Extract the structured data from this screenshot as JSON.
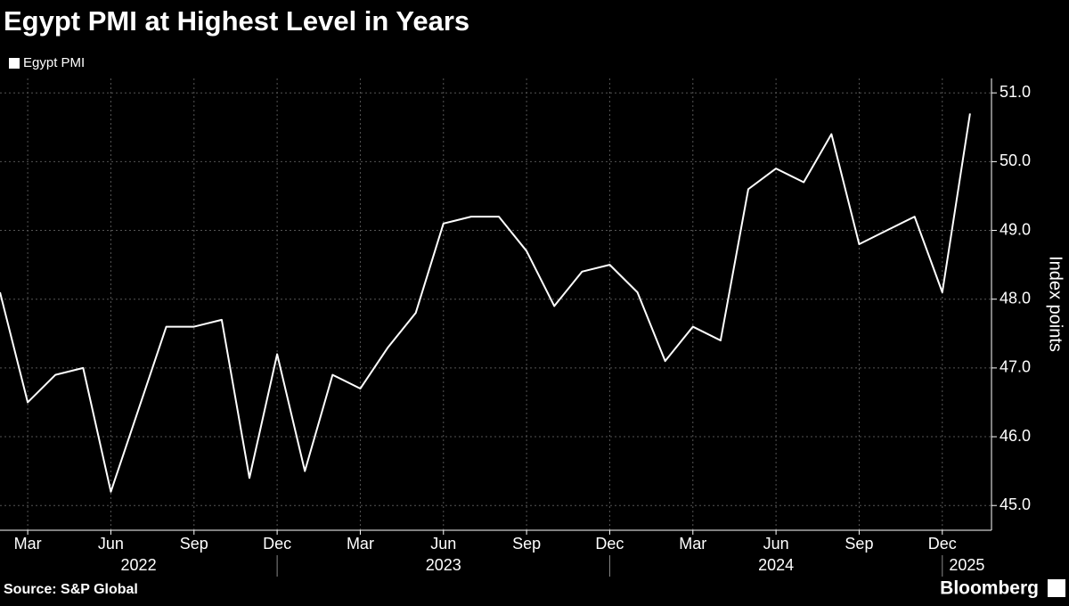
{
  "chart_data": {
    "type": "line",
    "title": "Egypt PMI at Highest Level in Years",
    "source": "Source: S&P Global",
    "brand": "Bloomberg",
    "y_axis_label": "Index points",
    "legend_position": "top-left",
    "grid": true,
    "x": [
      "2022-02",
      "2022-03",
      "2022-04",
      "2022-05",
      "2022-06",
      "2022-07",
      "2022-08",
      "2022-09",
      "2022-10",
      "2022-11",
      "2022-12",
      "2023-01",
      "2023-02",
      "2023-03",
      "2023-04",
      "2023-05",
      "2023-06",
      "2023-07",
      "2023-08",
      "2023-09",
      "2023-10",
      "2023-11",
      "2023-12",
      "2024-01",
      "2024-02",
      "2024-03",
      "2024-04",
      "2024-05",
      "2024-06",
      "2024-07",
      "2024-08",
      "2024-09",
      "2024-10",
      "2024-11",
      "2024-12",
      "2025-01"
    ],
    "series": [
      {
        "name": "Egypt PMI",
        "color": "#ffffff",
        "values": [
          48.1,
          46.5,
          46.9,
          47.0,
          45.2,
          46.4,
          47.6,
          47.6,
          47.7,
          45.4,
          47.2,
          45.5,
          46.9,
          46.7,
          47.3,
          47.8,
          49.1,
          49.2,
          49.2,
          48.7,
          47.9,
          48.4,
          48.5,
          48.1,
          47.1,
          47.6,
          47.4,
          49.6,
          49.9,
          49.7,
          50.4,
          48.8,
          49.0,
          49.2,
          48.1,
          50.7
        ]
      }
    ],
    "xlim": [
      "2022-02",
      "2025-02"
    ],
    "xticks": [
      {
        "value": "2022-03",
        "label": "Mar"
      },
      {
        "value": "2022-06",
        "label": "Jun"
      },
      {
        "value": "2022-09",
        "label": "Sep"
      },
      {
        "value": "2022-12",
        "label": "Dec"
      },
      {
        "value": "2023-03",
        "label": "Mar"
      },
      {
        "value": "2023-06",
        "label": "Jun"
      },
      {
        "value": "2023-09",
        "label": "Sep"
      },
      {
        "value": "2023-12",
        "label": "Dec"
      },
      {
        "value": "2024-03",
        "label": "Mar"
      },
      {
        "value": "2024-06",
        "label": "Jun"
      },
      {
        "value": "2024-09",
        "label": "Sep"
      },
      {
        "value": "2024-12",
        "label": "Dec"
      }
    ],
    "years": [
      2022,
      2023,
      2024,
      2025
    ],
    "ylim": [
      44.64,
      51.21
    ],
    "yticks": [
      {
        "value": 45,
        "label": "45.0"
      },
      {
        "value": 46,
        "label": "46.0"
      },
      {
        "value": 47,
        "label": "47.0"
      },
      {
        "value": 48,
        "label": "48.0"
      },
      {
        "value": 49,
        "label": "49.0"
      },
      {
        "value": 50,
        "label": "50.0"
      },
      {
        "value": 51,
        "label": "51.0"
      }
    ]
  }
}
